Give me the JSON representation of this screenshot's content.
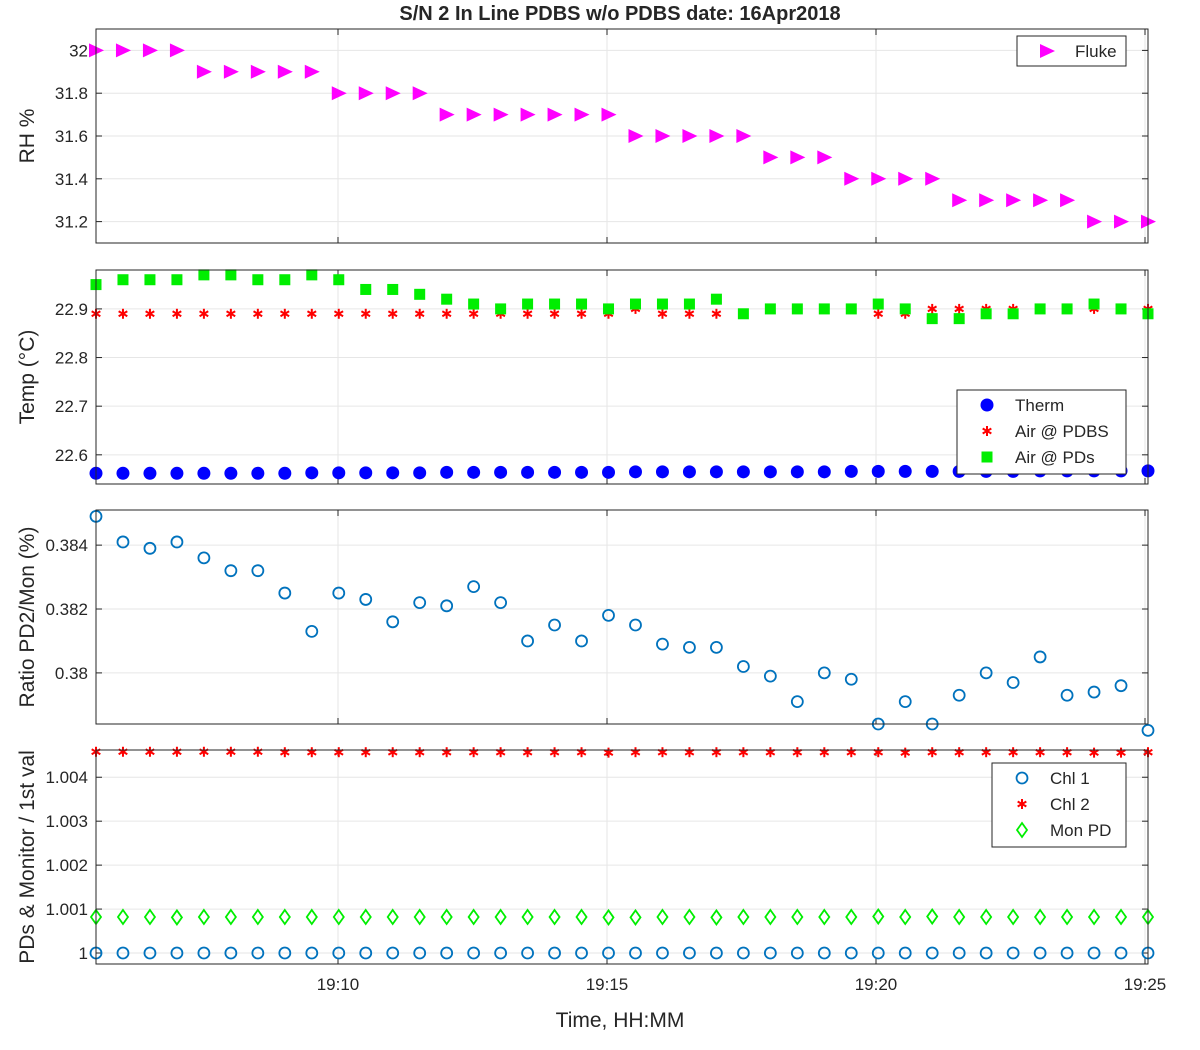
{
  "title": "S/N 2 In Line PDBS w/o PDBS date: 16Apr2018",
  "xlabel": "Time, HH:MM",
  "xticks": [
    "19:10",
    "19:15",
    "19:20",
    "19:25"
  ],
  "chart_data": [
    {
      "type": "scatter",
      "ylabel": "RH %",
      "ylim": [
        31.1,
        32.1
      ],
      "yticks": [
        "31.2",
        "31.4",
        "31.6",
        "31.8",
        "32"
      ],
      "legend_position": "top-right",
      "grid": true,
      "series": [
        {
          "name": "Fluke",
          "marker": "triangle-right",
          "color": "#ff00ff",
          "values": [
            32.0,
            32.0,
            32.0,
            32.0,
            31.9,
            31.9,
            31.9,
            31.9,
            31.9,
            31.8,
            31.8,
            31.8,
            31.8,
            31.7,
            31.7,
            31.7,
            31.7,
            31.7,
            31.7,
            31.7,
            31.6,
            31.6,
            31.6,
            31.6,
            31.6,
            31.5,
            31.5,
            31.5,
            31.4,
            31.4,
            31.4,
            31.4,
            31.3,
            31.3,
            31.3,
            31.3,
            31.3,
            31.2,
            31.2,
            31.2
          ]
        }
      ]
    },
    {
      "type": "scatter",
      "ylabel": "Temp (°C)",
      "ylim": [
        22.54,
        22.98
      ],
      "yticks": [
        "22.6",
        "22.7",
        "22.8",
        "22.9"
      ],
      "legend_position": "right",
      "grid": true,
      "series": [
        {
          "name": "Therm",
          "marker": "circle-filled",
          "color": "#0000ff",
          "values": [
            22.562,
            22.562,
            22.562,
            22.562,
            22.562,
            22.562,
            22.562,
            22.562,
            22.563,
            22.563,
            22.563,
            22.563,
            22.563,
            22.564,
            22.564,
            22.564,
            22.564,
            22.564,
            22.564,
            22.564,
            22.565,
            22.565,
            22.565,
            22.565,
            22.565,
            22.565,
            22.565,
            22.565,
            22.566,
            22.566,
            22.566,
            22.566,
            22.566,
            22.566,
            22.566,
            22.567,
            22.567,
            22.567,
            22.567,
            22.567
          ]
        },
        {
          "name": "Air @ PDBS",
          "marker": "asterisk",
          "color": "#ff0000",
          "values": [
            22.89,
            22.89,
            22.89,
            22.89,
            22.89,
            22.89,
            22.89,
            22.89,
            22.89,
            22.89,
            22.89,
            22.89,
            22.89,
            22.89,
            22.89,
            22.89,
            22.89,
            22.89,
            22.89,
            22.89,
            22.9,
            22.89,
            22.89,
            22.89,
            22.89,
            22.9,
            22.9,
            22.9,
            22.9,
            22.89,
            22.89,
            22.9,
            22.9,
            22.9,
            22.9,
            22.9,
            22.9,
            22.9,
            22.9,
            22.9
          ]
        },
        {
          "name": "Air @ PDs",
          "marker": "square-filled",
          "color": "#00ee00",
          "values": [
            22.95,
            22.96,
            22.96,
            22.96,
            22.97,
            22.97,
            22.96,
            22.96,
            22.97,
            22.96,
            22.94,
            22.94,
            22.93,
            22.92,
            22.91,
            22.9,
            22.91,
            22.91,
            22.91,
            22.9,
            22.91,
            22.91,
            22.91,
            22.92,
            22.89,
            22.9,
            22.9,
            22.9,
            22.9,
            22.91,
            22.9,
            22.88,
            22.88,
            22.89,
            22.89,
            22.9,
            22.9,
            22.91,
            22.9,
            22.89
          ]
        }
      ]
    },
    {
      "type": "scatter",
      "ylabel": "Ratio PD2/Mon (%)",
      "ylim": [
        0.3784,
        0.3851
      ],
      "yticks": [
        "0.38",
        "0.382",
        "0.384"
      ],
      "legend_position": "none",
      "grid": true,
      "series": [
        {
          "marker": "circle-open",
          "color": "#0072bd",
          "values": [
            0.3849,
            0.3841,
            0.3839,
            0.3841,
            0.3836,
            0.3832,
            0.3832,
            0.3825,
            0.3813,
            0.3825,
            0.3823,
            0.3816,
            0.3822,
            0.3821,
            0.3827,
            0.3822,
            0.381,
            0.3815,
            0.381,
            0.3818,
            0.3815,
            0.3809,
            0.3808,
            0.3808,
            0.3802,
            0.3799,
            0.3791,
            0.38,
            0.3798,
            0.3784,
            0.3791,
            0.3784,
            0.3793,
            0.38,
            0.3797,
            0.3805,
            0.3793,
            0.3794,
            0.3796,
            0.3782
          ]
        }
      ]
    },
    {
      "type": "scatter",
      "ylabel": "PDs & Monitor / 1st val",
      "ylim": [
        0.99975,
        1.00462
      ],
      "yticks": [
        "1",
        "1.001",
        "1.002",
        "1.003",
        "1.004"
      ],
      "legend_position": "top-right",
      "grid": true,
      "series": [
        {
          "name": "Chl 1",
          "marker": "circle-open",
          "color": "#0072bd",
          "values": [
            1.0,
            1.0,
            1.0,
            1.0,
            1.0,
            1.0,
            1.0,
            1.0,
            1.0,
            1.0,
            1.0,
            1.0,
            1.0,
            1.0,
            1.0,
            1.0,
            1.0,
            1.0,
            1.0,
            1.0,
            1.0,
            1.0,
            1.0,
            1.0,
            1.0,
            1.0,
            1.0,
            1.0,
            1.0,
            1.0,
            1.0,
            1.0,
            1.0,
            1.0,
            1.0,
            1.0,
            1.0,
            1.0,
            1.0,
            1.0
          ]
        },
        {
          "name": "Chl 2",
          "marker": "asterisk",
          "color": "#ff0000",
          "values": [
            1.00458,
            1.00458,
            1.00458,
            1.00458,
            1.00458,
            1.00458,
            1.00458,
            1.00457,
            1.00457,
            1.00457,
            1.00457,
            1.00457,
            1.00457,
            1.00457,
            1.00457,
            1.00457,
            1.00457,
            1.00457,
            1.00457,
            1.00456,
            1.00457,
            1.00457,
            1.00457,
            1.00457,
            1.00457,
            1.00457,
            1.00457,
            1.00457,
            1.00457,
            1.00457,
            1.00456,
            1.00457,
            1.00457,
            1.00457,
            1.00457,
            1.00457,
            1.00457,
            1.00456,
            1.00456,
            1.00457
          ]
        },
        {
          "name": "Mon PD",
          "marker": "diamond-open",
          "color": "#00ee00",
          "values": [
            1.00082,
            1.00082,
            1.00082,
            1.00081,
            1.00082,
            1.00082,
            1.00082,
            1.00082,
            1.00082,
            1.00082,
            1.00082,
            1.00082,
            1.00082,
            1.00082,
            1.00082,
            1.00082,
            1.00082,
            1.00082,
            1.00082,
            1.00081,
            1.00081,
            1.00082,
            1.00082,
            1.00081,
            1.00082,
            1.00082,
            1.00082,
            1.00082,
            1.00082,
            1.00083,
            1.00082,
            1.00083,
            1.00082,
            1.00082,
            1.00082,
            1.00082,
            1.00082,
            1.00082,
            1.00082,
            1.00082
          ]
        }
      ]
    }
  ]
}
